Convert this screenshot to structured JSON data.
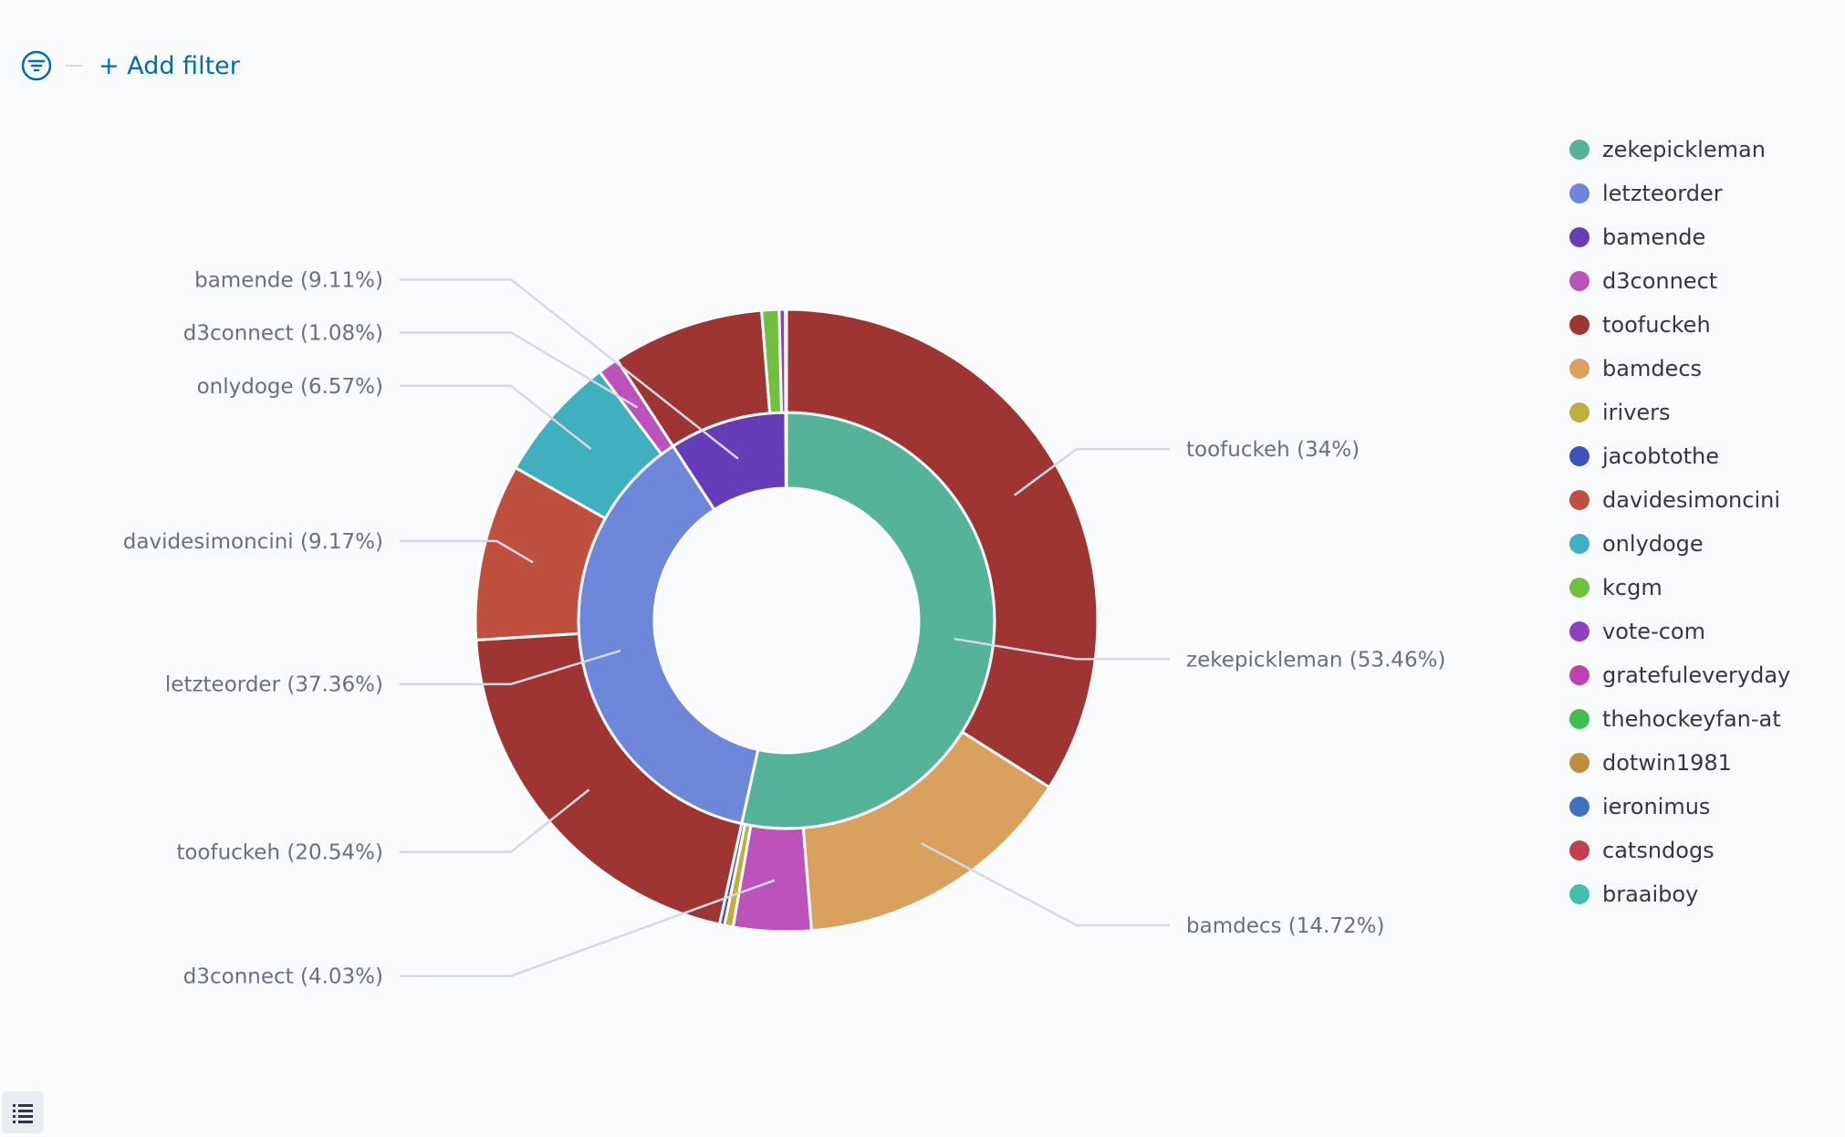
{
  "filter_bar": {
    "add_filter_label": "+ Add filter",
    "filter_icon": "filter-icon"
  },
  "legend_toggle_icon": "list-icon",
  "colors": {
    "zekepickleman": "#54b399",
    "letzteorder": "#6f87d8",
    "bamende": "#663db8",
    "d3connect": "#bc52bc",
    "toofuckeh": "#9e3533",
    "bamdecs": "#daa05d",
    "irivers": "#bfaf40",
    "jacobtothe": "#4050bf",
    "davidesimoncini": "#bf5040",
    "onlydoge": "#40afbf",
    "kcgm": "#70bf40",
    "vote-com": "#8f40bf",
    "gratefuleveryday": "#bf40af",
    "thehockeyfan-at": "#40bf50",
    "dotwin1981": "#bf8f40",
    "ieronimus": "#4070bf",
    "catsndogs": "#bf4050",
    "braaiboy": "#40bfaf"
  },
  "legend": {
    "items": [
      {
        "label": "zekepickleman",
        "color": "#54b399"
      },
      {
        "label": "letzteorder",
        "color": "#6f87d8"
      },
      {
        "label": "bamende",
        "color": "#663db8"
      },
      {
        "label": "d3connect",
        "color": "#bc52bc"
      },
      {
        "label": "toofuckeh",
        "color": "#9e3533"
      },
      {
        "label": "bamdecs",
        "color": "#daa05d"
      },
      {
        "label": "irivers",
        "color": "#bfaf40"
      },
      {
        "label": "jacobtothe",
        "color": "#4050bf"
      },
      {
        "label": "davidesimoncini",
        "color": "#bf5040"
      },
      {
        "label": "onlydoge",
        "color": "#40afbf"
      },
      {
        "label": "kcgm",
        "color": "#70bf40"
      },
      {
        "label": "vote-com",
        "color": "#8f40bf"
      },
      {
        "label": "gratefuleveryday",
        "color": "#bf40af"
      },
      {
        "label": "thehockeyfan-at",
        "color": "#40bf50"
      },
      {
        "label": "dotwin1981",
        "color": "#bf8f40"
      },
      {
        "label": "ieronimus",
        "color": "#4070bf"
      },
      {
        "label": "catsndogs",
        "color": "#bf4050"
      },
      {
        "label": "braaiboy",
        "color": "#40bfaf"
      }
    ]
  },
  "chart_data": {
    "type": "pie",
    "donut": true,
    "legend_position": "right",
    "inner_ring": [
      {
        "name": "zekepickleman",
        "percent": 53.46,
        "label": "zekepickleman (53.46%)"
      },
      {
        "name": "letzteorder",
        "percent": 37.36,
        "label": "letzteorder (37.36%)"
      },
      {
        "name": "bamende",
        "percent": 9.11,
        "label": "bamende (9.11%)"
      }
    ],
    "outer_ring": [
      {
        "parent": "zekepickleman",
        "name": "toofuckeh",
        "percent": 34,
        "label": "toofuckeh (34%)"
      },
      {
        "parent": "zekepickleman",
        "name": "bamdecs",
        "percent": 14.72,
        "label": "bamdecs (14.72%)"
      },
      {
        "parent": "zekepickleman",
        "name": "d3connect",
        "percent": 4.03,
        "label": "d3connect (4.03%)"
      },
      {
        "parent": "zekepickleman",
        "name": "irivers",
        "percent": 0.45
      },
      {
        "parent": "zekepickleman",
        "name": "jacobtothe",
        "percent": 0.26
      },
      {
        "parent": "letzteorder",
        "name": "toofuckeh",
        "percent": 20.54,
        "label": "toofuckeh (20.54%)"
      },
      {
        "parent": "letzteorder",
        "name": "davidesimoncini",
        "percent": 9.17,
        "label": "davidesimoncini (9.17%)"
      },
      {
        "parent": "letzteorder",
        "name": "onlydoge",
        "percent": 6.57,
        "label": "onlydoge (6.57%)"
      },
      {
        "parent": "letzteorder",
        "name": "d3connect",
        "percent": 1.08,
        "label": "d3connect (1.08%)"
      },
      {
        "parent": "bamende",
        "name": "toofuckeh",
        "percent": 7.9
      },
      {
        "parent": "bamende",
        "name": "kcgm",
        "percent": 0.9
      },
      {
        "parent": "bamende",
        "name": "vote-com",
        "percent": 0.31
      }
    ],
    "label_anchors": {
      "zekepickleman (53.46%)": "right",
      "toofuckeh (34%)": "right",
      "bamdecs (14.72%)": "right",
      "d3connect (4.03%)": "left",
      "toofuckeh (20.54%)": "left",
      "letzteorder (37.36%)": "left",
      "davidesimoncini (9.17%)": "left",
      "onlydoge (6.57%)": "left",
      "d3connect (1.08%)": "left",
      "bamende (9.11%)": "left"
    }
  }
}
